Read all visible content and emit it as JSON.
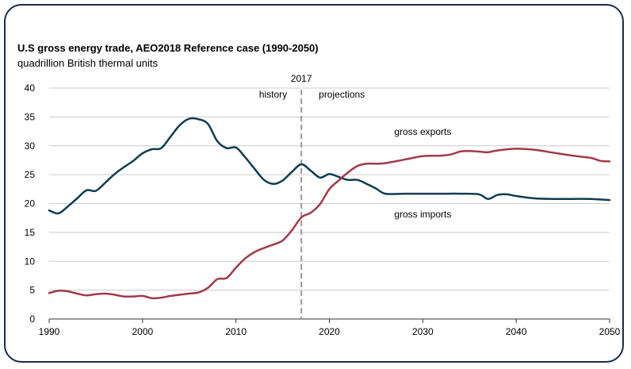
{
  "chart_data": {
    "type": "line",
    "title": "U.S gross energy trade, AEO2018 Reference case (1990-2050)",
    "subtitle": "quadrillion British thermal units",
    "xlabel": "",
    "ylabel": "",
    "xlim": [
      1990,
      2050
    ],
    "ylim": [
      0,
      40
    ],
    "x_ticks": [
      1990,
      2000,
      2010,
      2020,
      2030,
      2040,
      2050
    ],
    "y_ticks": [
      0,
      5,
      10,
      15,
      20,
      25,
      30,
      35,
      40
    ],
    "grid": true,
    "divider": {
      "x": 2017,
      "label": "2017",
      "left_label": "history",
      "right_label": "projections"
    },
    "series": [
      {
        "name": "gross imports",
        "color": "#0f3d4f",
        "points": [
          [
            1990,
            18.8
          ],
          [
            1991,
            18.3
          ],
          [
            1992,
            19.5
          ],
          [
            1993,
            20.9
          ],
          [
            1994,
            22.3
          ],
          [
            1995,
            22.2
          ],
          [
            1996,
            23.6
          ],
          [
            1997,
            25.1
          ],
          [
            1998,
            26.3
          ],
          [
            1999,
            27.4
          ],
          [
            2000,
            28.7
          ],
          [
            2001,
            29.4
          ],
          [
            2002,
            29.6
          ],
          [
            2003,
            31.6
          ],
          [
            2004,
            33.6
          ],
          [
            2005,
            34.7
          ],
          [
            2006,
            34.6
          ],
          [
            2007,
            33.8
          ],
          [
            2008,
            30.8
          ],
          [
            2009,
            29.6
          ],
          [
            2010,
            29.7
          ],
          [
            2011,
            28.0
          ],
          [
            2012,
            26.0
          ],
          [
            2013,
            24.1
          ],
          [
            2014,
            23.4
          ],
          [
            2015,
            24.0
          ],
          [
            2016,
            25.5
          ],
          [
            2017,
            26.8
          ],
          [
            2018,
            25.7
          ],
          [
            2019,
            24.5
          ],
          [
            2020,
            25.1
          ],
          [
            2021,
            24.6
          ],
          [
            2022,
            24.1
          ],
          [
            2023,
            24.1
          ],
          [
            2024,
            23.4
          ],
          [
            2025,
            22.6
          ],
          [
            2026,
            21.7
          ],
          [
            2028,
            21.7
          ],
          [
            2030,
            21.7
          ],
          [
            2032,
            21.7
          ],
          [
            2034,
            21.7
          ],
          [
            2036,
            21.6
          ],
          [
            2037,
            20.8
          ],
          [
            2038,
            21.5
          ],
          [
            2039,
            21.6
          ],
          [
            2040,
            21.3
          ],
          [
            2042,
            20.9
          ],
          [
            2044,
            20.8
          ],
          [
            2046,
            20.8
          ],
          [
            2048,
            20.8
          ],
          [
            2050,
            20.6
          ]
        ]
      },
      {
        "name": "gross exports",
        "color": "#a33a4a",
        "points": [
          [
            1990,
            4.5
          ],
          [
            1991,
            4.9
          ],
          [
            1992,
            4.8
          ],
          [
            1993,
            4.4
          ],
          [
            1994,
            4.1
          ],
          [
            1995,
            4.3
          ],
          [
            1996,
            4.4
          ],
          [
            1997,
            4.2
          ],
          [
            1998,
            3.9
          ],
          [
            1999,
            3.9
          ],
          [
            2000,
            4.0
          ],
          [
            2001,
            3.6
          ],
          [
            2002,
            3.7
          ],
          [
            2003,
            4.0
          ],
          [
            2004,
            4.2
          ],
          [
            2005,
            4.4
          ],
          [
            2006,
            4.6
          ],
          [
            2007,
            5.4
          ],
          [
            2008,
            6.9
          ],
          [
            2009,
            7.1
          ],
          [
            2010,
            8.9
          ],
          [
            2011,
            10.5
          ],
          [
            2012,
            11.6
          ],
          [
            2013,
            12.3
          ],
          [
            2014,
            12.9
          ],
          [
            2015,
            13.6
          ],
          [
            2016,
            15.4
          ],
          [
            2017,
            17.6
          ],
          [
            2018,
            18.4
          ],
          [
            2019,
            19.9
          ],
          [
            2020,
            22.5
          ],
          [
            2021,
            24.0
          ],
          [
            2022,
            25.4
          ],
          [
            2023,
            26.5
          ],
          [
            2024,
            26.9
          ],
          [
            2025,
            26.9
          ],
          [
            2026,
            27.0
          ],
          [
            2028,
            27.6
          ],
          [
            2030,
            28.2
          ],
          [
            2032,
            28.3
          ],
          [
            2033,
            28.5
          ],
          [
            2034,
            29.0
          ],
          [
            2035,
            29.1
          ],
          [
            2036,
            29.0
          ],
          [
            2037,
            28.9
          ],
          [
            2038,
            29.2
          ],
          [
            2040,
            29.5
          ],
          [
            2042,
            29.3
          ],
          [
            2044,
            28.8
          ],
          [
            2046,
            28.3
          ],
          [
            2048,
            27.9
          ],
          [
            2049,
            27.4
          ],
          [
            2050,
            27.3
          ]
        ]
      }
    ],
    "series_labels": [
      {
        "text": "gross exports",
        "x": 2030,
        "y": 31.9,
        "anchor": "middle"
      },
      {
        "text": "gross imports",
        "x": 2030,
        "y": 17.6,
        "anchor": "middle"
      }
    ]
  },
  "colors": {
    "frame": "#1a2b4a",
    "grid": "#cccccc",
    "axis": "#333333",
    "divider": "#999999"
  }
}
